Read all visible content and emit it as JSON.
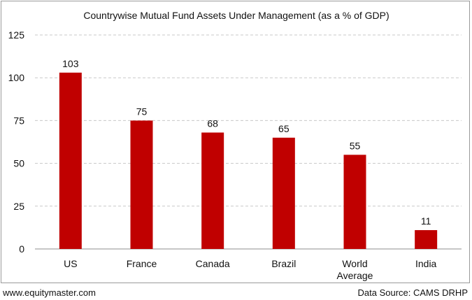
{
  "chart_data": {
    "type": "bar",
    "title": "Countrywise Mutual Fund Assets Under Management (as a % of GDP)",
    "xlabel": "",
    "ylabel": "",
    "categories": [
      [
        "US"
      ],
      [
        "France"
      ],
      [
        "Canada"
      ],
      [
        "Brazil"
      ],
      [
        "World",
        "Average"
      ],
      [
        "India"
      ]
    ],
    "values": [
      103,
      75,
      68,
      65,
      55,
      11
    ],
    "data_labels": [
      "103",
      "75",
      "68",
      "65",
      "55",
      "11"
    ],
    "ylim": [
      0,
      125
    ],
    "yticks": [
      0,
      25,
      50,
      75,
      100,
      125
    ],
    "ytick_labels": [
      "0",
      "25",
      "50",
      "75",
      "100",
      "125"
    ],
    "grid": true,
    "bar_color": "#c00000",
    "grid_color": "#c8c8c8",
    "legend": "none"
  },
  "footer": {
    "website": "www.equitymaster.com",
    "source": "Data Source: CAMS DRHP"
  }
}
